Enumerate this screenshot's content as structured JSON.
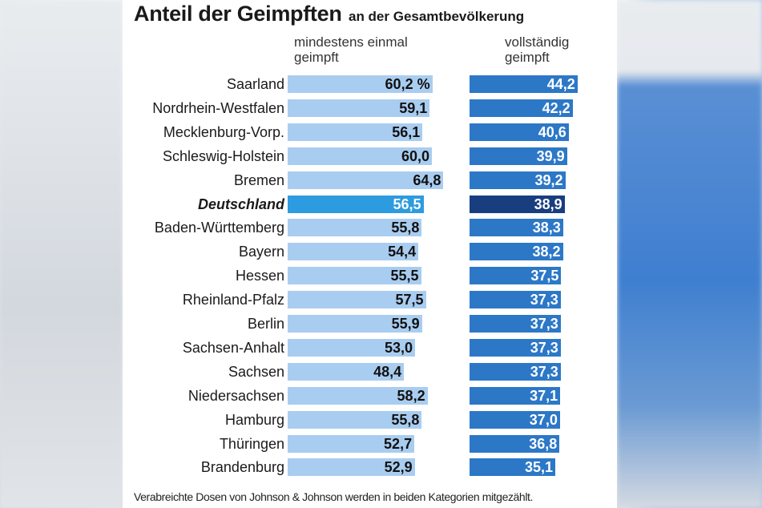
{
  "chart_data": {
    "type": "bar",
    "title": "Anteil der Geimpften",
    "subtitle": "an der Gesamtbevölkerung",
    "series": [
      {
        "name": "mindestens einmal geimpft",
        "values": [
          60.2,
          59.1,
          56.1,
          60.0,
          64.8,
          56.5,
          55.8,
          54.4,
          55.5,
          57.5,
          55.9,
          53.0,
          48.4,
          58.2,
          55.8,
          52.7,
          52.9
        ]
      },
      {
        "name": "vollständig geimpft",
        "values": [
          44.2,
          42.2,
          40.6,
          39.9,
          39.2,
          38.9,
          38.3,
          38.2,
          37.5,
          37.3,
          37.3,
          37.3,
          37.3,
          37.1,
          37.0,
          36.8,
          35.1
        ]
      }
    ],
    "categories": [
      "Saarland",
      "Nordrhein-Westfalen",
      "Mecklenburg-Vorp.",
      "Schleswig-Holstein",
      "Bremen",
      "Deutschland",
      "Baden-Württemberg",
      "Bayern",
      "Hessen",
      "Rheinland-Pfalz",
      "Berlin",
      "Sachsen-Anhalt",
      "Sachsen",
      "Niedersachsen",
      "Hamburg",
      "Thüringen",
      "Brandenburg"
    ],
    "highlight": "Deutschland",
    "unit": "%",
    "xlim": [
      0,
      100
    ]
  },
  "rows": [
    {
      "label": "Saarland",
      "first": "60,2 %",
      "full": "44,2"
    },
    {
      "label": "Nordrhein-Westfalen",
      "first": "59,1",
      "full": "42,2"
    },
    {
      "label": "Mecklenburg-Vorp.",
      "first": "56,1",
      "full": "40,6"
    },
    {
      "label": "Schleswig-Holstein",
      "first": "60,0",
      "full": "39,9"
    },
    {
      "label": "Bremen",
      "first": "64,8",
      "full": "39,2"
    },
    {
      "label": "Deutschland",
      "first": "56,5",
      "full": "38,9"
    },
    {
      "label": "Baden-Württemberg",
      "first": "55,8",
      "full": "38,3"
    },
    {
      "label": "Bayern",
      "first": "54,4",
      "full": "38,2"
    },
    {
      "label": "Hessen",
      "first": "55,5",
      "full": "37,5"
    },
    {
      "label": "Rheinland-Pfalz",
      "first": "57,5",
      "full": "37,3"
    },
    {
      "label": "Berlin",
      "first": "55,9",
      "full": "37,3"
    },
    {
      "label": "Sachsen-Anhalt",
      "first": "53,0",
      "full": "37,3"
    },
    {
      "label": "Sachsen",
      "first": "48,4",
      "full": "37,3"
    },
    {
      "label": "Niedersachsen",
      "first": "58,2",
      "full": "37,1"
    },
    {
      "label": "Hamburg",
      "first": "55,8",
      "full": "37,0"
    },
    {
      "label": "Thüringen",
      "first": "52,7",
      "full": "36,8"
    },
    {
      "label": "Brandenburg",
      "first": "52,9",
      "full": "35,1"
    }
  ],
  "header": {
    "title": "Anteil der Geimpften",
    "subtitle": "an der Gesamtbevölkerung",
    "col1_line1": "mindestens einmal",
    "col1_line2": "geimpft",
    "col2_line1": "vollständig",
    "col2_line2": "geimpft"
  },
  "footnote": "Verabreichte Dosen von Johnson & Johnson werden in beiden Kategorien mitgezählt.",
  "colors": {
    "bar_first": "#a9cdf0",
    "bar_first_highlight": "#2d9be0",
    "bar_full": "#2c78c7",
    "bar_full_highlight": "#183e80"
  }
}
